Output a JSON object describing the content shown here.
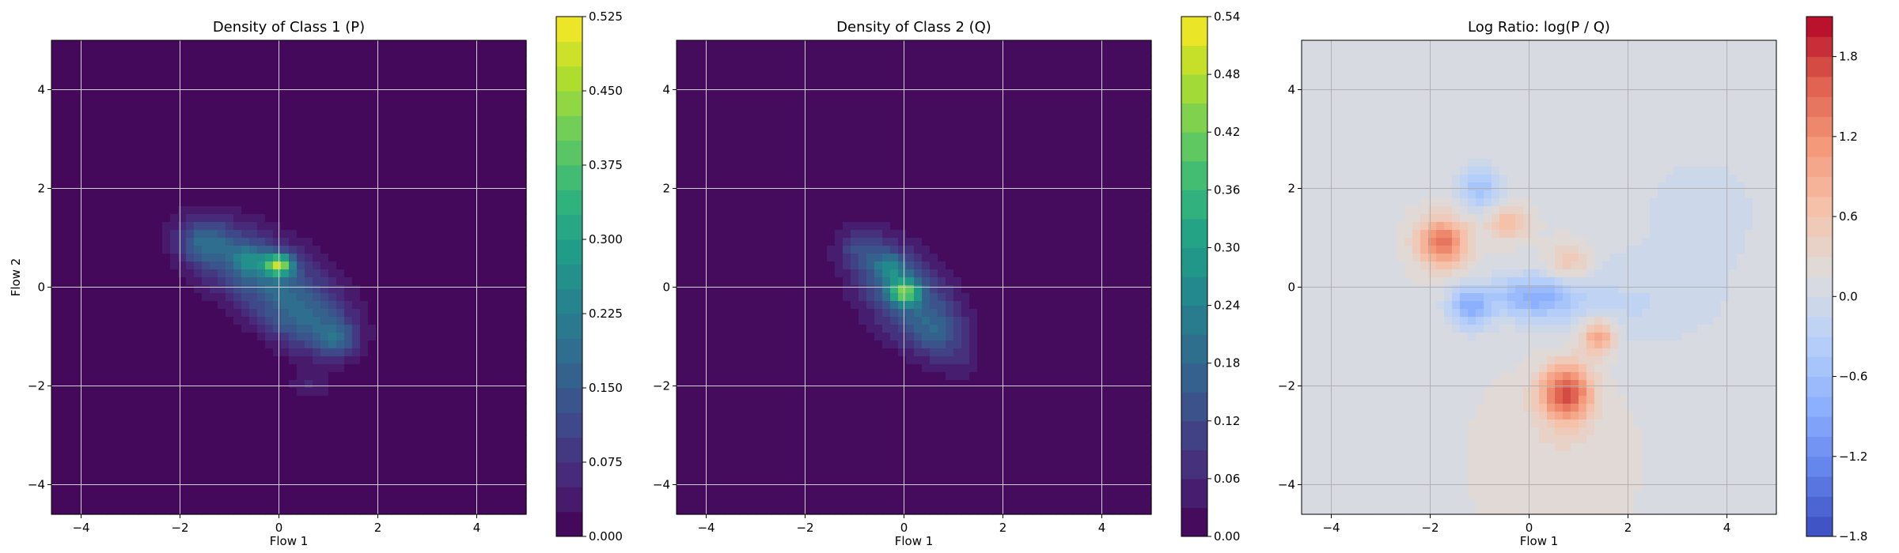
{
  "chart_data": [
    {
      "type": "heatmap",
      "title": "Density of Class 1 (P)",
      "xlabel": "Flow 1",
      "ylabel": "Flow 2",
      "xlim": [
        -4.6,
        5.0
      ],
      "ylim": [
        -4.6,
        5.0
      ],
      "xticks": [
        -4,
        -2,
        0,
        2,
        4
      ],
      "yticks": [
        -4,
        -2,
        0,
        2,
        4
      ],
      "xtick_labels": [
        "−4",
        "−2",
        "0",
        "2",
        "4"
      ],
      "ytick_labels": [
        "−4",
        "−2",
        "0",
        "2",
        "4"
      ],
      "grid": true,
      "colormap": "viridis",
      "colorbar": {
        "min": 0.0,
        "max": 0.525,
        "levels": 21,
        "ticks": [
          0.0,
          0.075,
          0.15,
          0.225,
          0.3,
          0.375,
          0.45,
          0.525
        ],
        "tick_labels": [
          "0.000",
          "0.075",
          "0.150",
          "0.225",
          "0.300",
          "0.375",
          "0.450",
          "0.525"
        ]
      },
      "blobs": [
        {
          "x": -0.3,
          "y": 0.25,
          "sx": 1.0,
          "sy": 0.7,
          "rho": -0.55,
          "amp": 0.17
        },
        {
          "x": 0.0,
          "y": 0.45,
          "sx": 0.2,
          "sy": 0.15,
          "rho": 0.0,
          "amp": 0.33
        },
        {
          "x": -1.5,
          "y": 0.9,
          "sx": 0.35,
          "sy": 0.3,
          "rho": 0.0,
          "amp": 0.12
        },
        {
          "x": 0.6,
          "y": -0.8,
          "sx": 0.6,
          "sy": 0.45,
          "rho": -0.3,
          "amp": 0.12
        },
        {
          "x": 1.2,
          "y": -1.05,
          "sx": 0.25,
          "sy": 0.25,
          "rho": 0.0,
          "amp": 0.1
        },
        {
          "x": 0.6,
          "y": -2.0,
          "sx": 0.3,
          "sy": 0.2,
          "rho": 0.0,
          "amp": 0.05
        },
        {
          "x": -0.6,
          "y": 0.55,
          "sx": 0.25,
          "sy": 0.2,
          "rho": 0.0,
          "amp": 0.12
        }
      ]
    },
    {
      "type": "heatmap",
      "title": "Density of Class 2 (Q)",
      "xlabel": "Flow 1",
      "ylabel": "",
      "xlim": [
        -4.6,
        5.0
      ],
      "ylim": [
        -4.6,
        5.0
      ],
      "xticks": [
        -4,
        -2,
        0,
        2,
        4
      ],
      "yticks": [
        -4,
        -2,
        0,
        2,
        4
      ],
      "xtick_labels": [
        "−4",
        "−2",
        "0",
        "2",
        "4"
      ],
      "ytick_labels": [
        "−4",
        "−2",
        "0",
        "2",
        "4"
      ],
      "grid": true,
      "colormap": "viridis",
      "colorbar": {
        "min": 0.0,
        "max": 0.54,
        "levels": 18,
        "ticks": [
          0.0,
          0.06,
          0.12,
          0.18,
          0.24,
          0.3,
          0.36,
          0.42,
          0.48,
          0.54
        ],
        "tick_labels": [
          "0.00",
          "0.06",
          "0.12",
          "0.18",
          "0.24",
          "0.30",
          "0.36",
          "0.42",
          "0.48",
          "0.54"
        ]
      },
      "blobs": [
        {
          "x": 0.0,
          "y": -0.1,
          "sx": 0.75,
          "sy": 0.75,
          "rho": -0.45,
          "amp": 0.16
        },
        {
          "x": 0.0,
          "y": -0.1,
          "sx": 0.22,
          "sy": 0.18,
          "rho": 0.0,
          "amp": 0.3
        },
        {
          "x": -0.3,
          "y": 0.4,
          "sx": 0.25,
          "sy": 0.2,
          "rho": 0.0,
          "amp": 0.14
        },
        {
          "x": 0.6,
          "y": -0.9,
          "sx": 0.4,
          "sy": 0.35,
          "rho": 0.0,
          "amp": 0.09
        },
        {
          "x": -0.9,
          "y": 0.8,
          "sx": 0.3,
          "sy": 0.25,
          "rho": 0.0,
          "amp": 0.07
        },
        {
          "x": 1.1,
          "y": -1.5,
          "sx": 0.3,
          "sy": 0.3,
          "rho": 0.0,
          "amp": 0.04
        }
      ]
    },
    {
      "type": "heatmap",
      "title": "Log Ratio: log(P / Q)",
      "xlabel": "Flow 1",
      "ylabel": "",
      "xlim": [
        -4.6,
        5.0
      ],
      "ylim": [
        -4.6,
        5.0
      ],
      "xticks": [
        -4,
        -2,
        0,
        2,
        4
      ],
      "yticks": [
        -4,
        -2,
        0,
        2,
        4
      ],
      "xtick_labels": [
        "−4",
        "−2",
        "0",
        "2",
        "4"
      ],
      "ytick_labels": [
        "−4",
        "−2",
        "0",
        "2",
        "4"
      ],
      "grid": true,
      "colormap": "coolwarm",
      "colorbar": {
        "min": -1.8,
        "max": 2.1,
        "levels": 26,
        "ticks": [
          -1.8,
          -1.2,
          -0.6,
          0.0,
          0.6,
          1.2,
          1.8
        ],
        "tick_labels": [
          "−1.8",
          "−1.2",
          "−0.6",
          "0.0",
          "0.6",
          "1.2",
          "1.8"
        ]
      },
      "base": 0.12,
      "blobs": [
        {
          "x": -1.75,
          "y": 0.9,
          "sx": 0.35,
          "sy": 0.35,
          "rho": 0.0,
          "amp": 1.3
        },
        {
          "x": 0.75,
          "y": -2.15,
          "sx": 0.35,
          "sy": 0.4,
          "rho": 0.0,
          "amp": 1.6
        },
        {
          "x": 1.4,
          "y": -1.0,
          "sx": 0.25,
          "sy": 0.25,
          "rho": 0.0,
          "amp": 1.0
        },
        {
          "x": -0.4,
          "y": 1.3,
          "sx": 0.3,
          "sy": 0.25,
          "rho": 0.0,
          "amp": 0.6
        },
        {
          "x": 0.8,
          "y": 0.5,
          "sx": 0.3,
          "sy": 0.3,
          "rho": 0.0,
          "amp": 0.5
        },
        {
          "x": 0.1,
          "y": -0.2,
          "sx": 0.6,
          "sy": 0.3,
          "rho": 0.0,
          "amp": -0.9
        },
        {
          "x": -1.2,
          "y": -0.4,
          "sx": 0.3,
          "sy": 0.3,
          "rho": 0.0,
          "amp": -0.9
        },
        {
          "x": -1.0,
          "y": 2.0,
          "sx": 0.3,
          "sy": 0.3,
          "rho": 0.0,
          "amp": -0.7
        },
        {
          "x": 1.8,
          "y": -0.4,
          "sx": 1.2,
          "sy": 0.6,
          "rho": 0.0,
          "amp": -0.25
        },
        {
          "x": 0.5,
          "y": -3.5,
          "sx": 1.0,
          "sy": 1.2,
          "rho": 0.0,
          "amp": 0.15
        },
        {
          "x": 3.5,
          "y": 1.5,
          "sx": 1.5,
          "sy": 1.5,
          "rho": 0.0,
          "amp": -0.15
        }
      ]
    }
  ]
}
